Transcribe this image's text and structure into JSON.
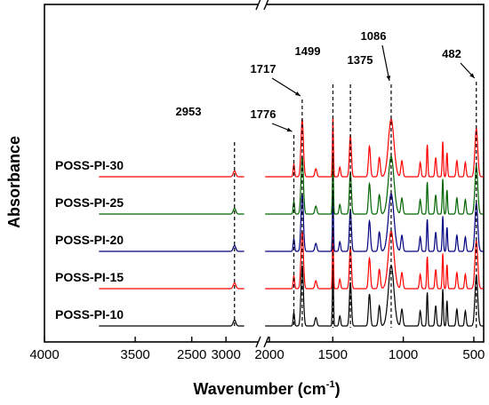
{
  "chart_data": {
    "type": "line",
    "xlabel": "Wavenumber (cm",
    "xlabel_sup": "-1",
    "xlabel_end": ")",
    "ylabel": "Absorbance",
    "x_reversed": true,
    "x_break": [
      2000,
      2800
    ],
    "xlim": [
      4000,
      430
    ],
    "x_ticks": [
      4000,
      3500,
      3000,
      2500,
      2000,
      1500,
      1000,
      500
    ],
    "grid": false,
    "series": [
      {
        "name": "POSS-PI-10",
        "color": "#000000",
        "baseline": 0
      },
      {
        "name": "POSS-PI-15",
        "color": "#ff0000",
        "baseline": 1
      },
      {
        "name": "POSS-PI-20",
        "color": "#00007f",
        "baseline": 2
      },
      {
        "name": "POSS-PI-25",
        "color": "#006400",
        "baseline": 3
      },
      {
        "name": "POSS-PI-30",
        "color": "#ff0000",
        "baseline": 4
      }
    ],
    "peaks": [
      {
        "x": 2953,
        "label": "2953"
      },
      {
        "x": 1776,
        "label": "1776"
      },
      {
        "x": 1717,
        "label": "1717"
      },
      {
        "x": 1499,
        "label": "1499"
      },
      {
        "x": 1375,
        "label": "1375"
      },
      {
        "x": 1086,
        "label": "1086"
      },
      {
        "x": 482,
        "label": "482"
      }
    ]
  }
}
